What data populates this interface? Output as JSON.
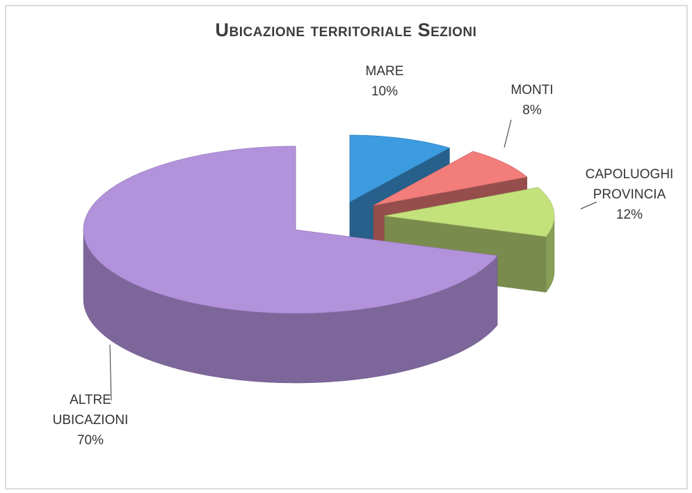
{
  "chart_data": {
    "type": "pie3d",
    "title": "Ubicazione territoriale Sezioni",
    "categories": [
      "MARE",
      "MONTI",
      "CAPOLUOGHI PROVINCIA",
      "ALTRE UBICAZIONI"
    ],
    "values": [
      10,
      8,
      12,
      70
    ],
    "value_labels": [
      "10%",
      "8%",
      "12%",
      "70%"
    ],
    "colors": [
      "#3d9be0",
      "#f27d7b",
      "#c4e27c",
      "#b392dc"
    ]
  }
}
